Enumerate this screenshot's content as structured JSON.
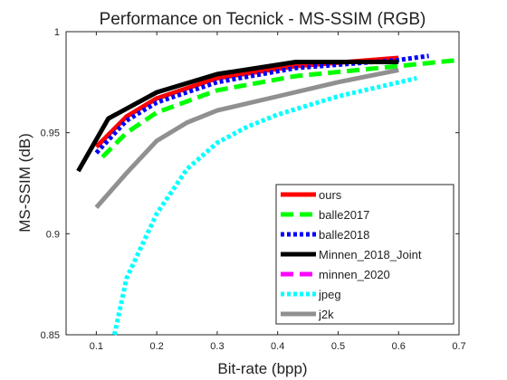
{
  "chart_data": {
    "type": "line",
    "title": "Performance on Tecnick - MS-SSIM (RGB)",
    "xlabel": "Bit-rate (bpp)",
    "ylabel": "MS-SSIM (dB)",
    "xlim": [
      0.05,
      0.7
    ],
    "ylim": [
      0.85,
      1.0
    ],
    "xticks": [
      0.1,
      0.2,
      0.3,
      0.4,
      0.5,
      0.6,
      0.7
    ],
    "xtick_labels": [
      "0.1",
      "0.2",
      "0.3",
      "0.4",
      "0.5",
      "0.6",
      "0.7"
    ],
    "yticks": [
      0.85,
      0.9,
      0.95,
      1.0
    ],
    "ytick_labels": [
      "0.85",
      "0.9",
      "0.95",
      "1"
    ],
    "grid": false,
    "legend_position": "bottom-right",
    "series": [
      {
        "name": "ours",
        "color": "#ff0000",
        "dash": "solid",
        "x": [
          0.1,
          0.15,
          0.2,
          0.3,
          0.43,
          0.6
        ],
        "y": [
          0.943,
          0.958,
          0.967,
          0.977,
          0.983,
          0.987
        ]
      },
      {
        "name": "balle2017",
        "color": "#00ff00",
        "dash": "dashed",
        "x": [
          0.11,
          0.15,
          0.2,
          0.3,
          0.43,
          0.6,
          0.7
        ],
        "y": [
          0.938,
          0.95,
          0.96,
          0.971,
          0.978,
          0.983,
          0.986
        ]
      },
      {
        "name": "balle2018",
        "color": "#0000ff",
        "dash": "dotted",
        "x": [
          0.1,
          0.15,
          0.2,
          0.3,
          0.43,
          0.6,
          0.65
        ],
        "y": [
          0.94,
          0.956,
          0.965,
          0.975,
          0.982,
          0.986,
          0.988
        ]
      },
      {
        "name": "Minnen_2018_Joint",
        "color": "#000000",
        "dash": "solid",
        "x": [
          0.07,
          0.12,
          0.2,
          0.3,
          0.43,
          0.6
        ],
        "y": [
          0.931,
          0.957,
          0.97,
          0.979,
          0.985,
          0.985
        ]
      },
      {
        "name": "minnen_2020",
        "color": "#ff00ff",
        "dash": "dashed",
        "x": [],
        "y": []
      },
      {
        "name": "jpeg",
        "color": "#00ffff",
        "dash": "dotted",
        "x": [
          0.13,
          0.15,
          0.2,
          0.25,
          0.3,
          0.35,
          0.4,
          0.5,
          0.63
        ],
        "y": [
          0.85,
          0.878,
          0.91,
          0.932,
          0.945,
          0.953,
          0.959,
          0.968,
          0.977
        ]
      },
      {
        "name": "j2k",
        "color": "#909090",
        "dash": "solid",
        "x": [
          0.1,
          0.15,
          0.2,
          0.25,
          0.3,
          0.4,
          0.5,
          0.6
        ],
        "y": [
          0.913,
          0.93,
          0.946,
          0.955,
          0.961,
          0.968,
          0.975,
          0.981
        ]
      }
    ]
  }
}
